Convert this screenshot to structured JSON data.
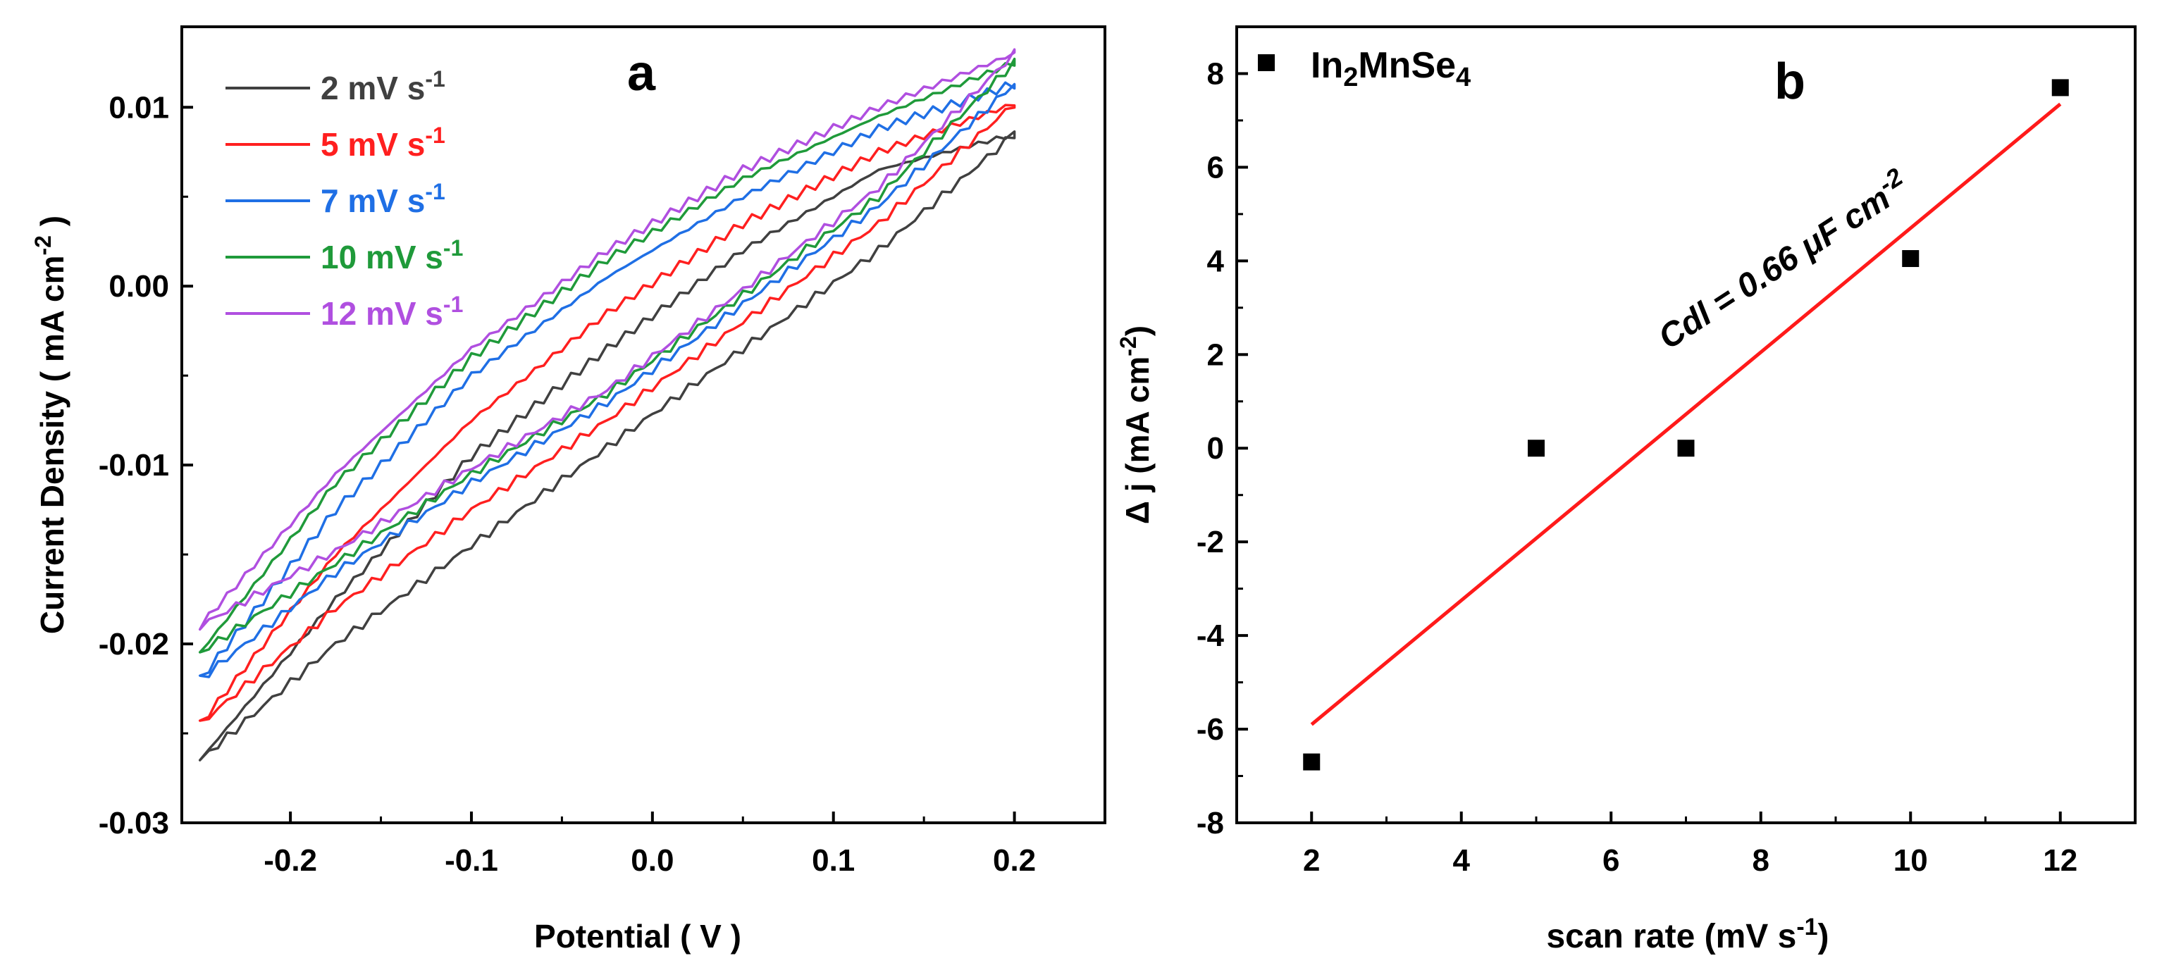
{
  "chart_data": [
    {
      "panel": "a",
      "type": "line",
      "title": "a",
      "xlabel": "Potential  ( V )",
      "ylabel": "Current Density ( mA cm",
      "ylabel_sup": "-2",
      "ylabel_close": " )",
      "xlim": [
        -0.26,
        0.25
      ],
      "ylim": [
        -0.03,
        0.0145
      ],
      "xticks": [
        -0.2,
        -0.1,
        0.0,
        0.1,
        0.2
      ],
      "xtick_labels": [
        "-0.2",
        "-0.1",
        "0.0",
        "0.1",
        "0.2"
      ],
      "yticks": [
        -0.03,
        -0.02,
        -0.01,
        0.0,
        0.01
      ],
      "ytick_labels": [
        "-0.03",
        "-0.02",
        "-0.01",
        "0.00",
        "0.01"
      ],
      "legend_position": "top-left",
      "series": [
        {
          "name": "2 mV s",
          "unit_sup": "-1",
          "color": "#404040",
          "vmin": -0.25,
          "vmax": 0.2,
          "upper": [
            -0.0265,
            -0.0175,
            -0.0095,
            -0.0035,
            0.002,
            0.0065,
            0.0085
          ],
          "lower": [
            -0.0265,
            -0.02,
            -0.0145,
            -0.009,
            -0.0035,
            0.002,
            0.0085
          ]
        },
        {
          "name": "5 mV s",
          "unit_sup": "-1",
          "color": "#ff1f1f",
          "vmin": -0.25,
          "vmax": 0.2,
          "upper": [
            -0.0245,
            -0.015,
            -0.0075,
            -0.0015,
            0.0035,
            0.0075,
            0.0102
          ],
          "lower": [
            -0.0245,
            -0.018,
            -0.0125,
            -0.0075,
            -0.002,
            0.0035,
            0.0102
          ]
        },
        {
          "name": "7 mV s",
          "unit_sup": "-1",
          "color": "#1f6fe5",
          "vmin": -0.25,
          "vmax": 0.2,
          "upper": [
            -0.022,
            -0.0125,
            -0.005,
            0.0005,
            0.005,
            0.0088,
            0.0113
          ],
          "lower": [
            -0.022,
            -0.016,
            -0.011,
            -0.0065,
            -0.001,
            0.0045,
            0.0113
          ]
        },
        {
          "name": "10 mV s",
          "unit_sup": "-1",
          "color": "#1f9a3a",
          "vmin": -0.25,
          "vmax": 0.2,
          "upper": [
            -0.0205,
            -0.011,
            -0.004,
            0.0015,
            0.006,
            0.0095,
            0.0125
          ],
          "lower": [
            -0.0205,
            -0.0155,
            -0.0105,
            -0.006,
            -0.0005,
            0.005,
            0.0125
          ]
        },
        {
          "name": "12 mV s",
          "unit_sup": "-1",
          "color": "#b04fe0",
          "vmin": -0.25,
          "vmax": 0.2,
          "upper": [
            -0.019,
            -0.0105,
            -0.0035,
            0.002,
            0.0065,
            0.01,
            0.013
          ],
          "lower": [
            -0.019,
            -0.0148,
            -0.0102,
            -0.0058,
            -0.0002,
            0.0055,
            0.013
          ]
        }
      ]
    },
    {
      "panel": "b",
      "type": "scatter",
      "title": "b",
      "xlabel": "scan rate (mV s",
      "xlabel_sup": "-1",
      "xlabel_close": ")",
      "ylabel": "Δ j (mA cm",
      "ylabel_sup": "-2",
      "ylabel_close": ")",
      "xlim": [
        1,
        13
      ],
      "ylim": [
        -8,
        9
      ],
      "xticks": [
        2,
        4,
        6,
        8,
        10,
        12
      ],
      "xtick_labels": [
        "2",
        "4",
        "6",
        "8",
        "10",
        "12"
      ],
      "yticks": [
        -8,
        -6,
        -4,
        -2,
        0,
        2,
        4,
        6,
        8
      ],
      "ytick_labels": [
        "-8",
        "-6",
        "-4",
        "-2",
        "0",
        "2",
        "4",
        "6",
        "8"
      ],
      "legend_position": "top-left",
      "legend": {
        "base": "In",
        "sub1": "2",
        "mid": "MnSe",
        "sub2": "4"
      },
      "x": [
        2,
        5,
        7,
        10,
        12
      ],
      "y": [
        -6.7,
        0.0,
        0.0,
        4.05,
        7.7
      ],
      "marker_color": "#000000",
      "fit": {
        "x": [
          2,
          12
        ],
        "y": [
          -5.9,
          7.35
        ],
        "color": "#ff1a1a"
      },
      "annotation": {
        "text": "Cdl = 0.66 μF cm",
        "sup": "-2"
      }
    }
  ]
}
